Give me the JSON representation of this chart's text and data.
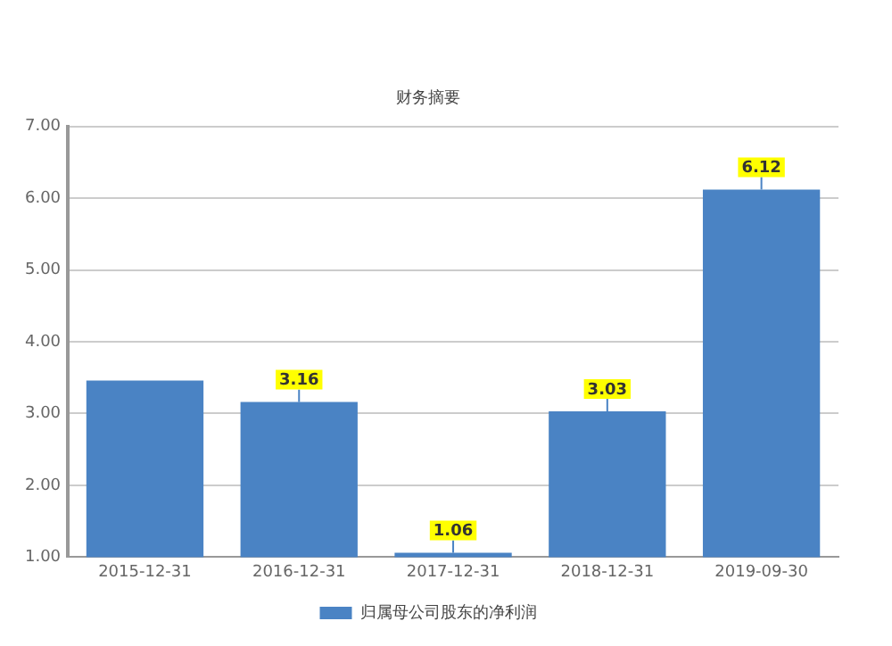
{
  "chart_data": {
    "type": "bar",
    "title": "财务摘要",
    "categories": [
      "2015-12-31",
      "2016-12-31",
      "2017-12-31",
      "2018-12-31",
      "2019-09-30"
    ],
    "series": [
      {
        "name": "归属母公司股东的净利润",
        "color": "#4a83c4",
        "values": [
          3.46,
          3.16,
          1.06,
          3.03,
          6.12
        ]
      }
    ],
    "value_labels": [
      null,
      "3.16",
      "1.06",
      "3.03",
      "6.12"
    ],
    "ylim": [
      1,
      7
    ],
    "yticks": [
      {
        "value": 1,
        "label": "1.00"
      },
      {
        "value": 2,
        "label": "2.00"
      },
      {
        "value": 3,
        "label": "3.00"
      },
      {
        "value": 4,
        "label": "4.00"
      },
      {
        "value": 5,
        "label": "5.00"
      },
      {
        "value": 6,
        "label": "6.00"
      },
      {
        "value": 7,
        "label": "7.00"
      }
    ],
    "grid": "y",
    "legend": "bottom"
  }
}
